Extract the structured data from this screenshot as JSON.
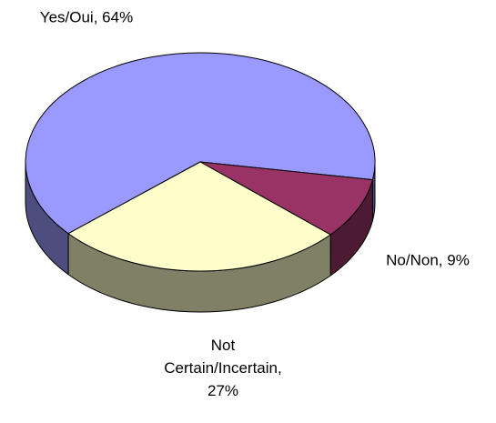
{
  "chart_data": {
    "type": "pie",
    "three_d": true,
    "values": [
      64,
      9,
      27
    ],
    "value_labels": [
      "Yes/Oui, 64%",
      "No/Non, 9%",
      "Not Certain/Incertain, 27%"
    ],
    "colors": [
      "#9999ff",
      "#993366",
      "#ffffcc"
    ],
    "side_colors": [
      "#4d4d80",
      "#4d1a33",
      "#808066"
    ]
  }
}
